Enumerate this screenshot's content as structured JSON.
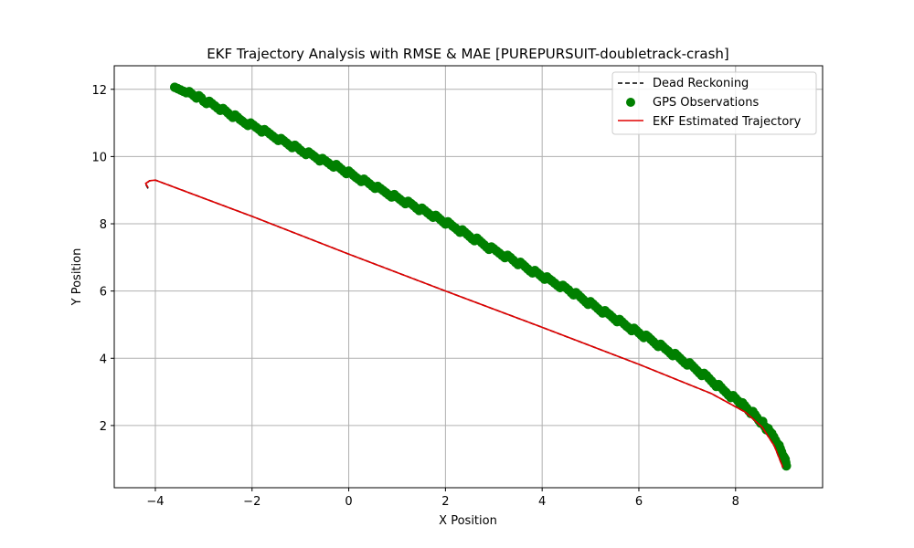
{
  "chart_data": {
    "type": "scatter",
    "title": "EKF Trajectory Analysis with RMSE & MAE [PUREPURSUIT-doubletrack-crash]",
    "xlabel": "X Position",
    "ylabel": "Y Position",
    "xlim": [
      -4.85,
      9.8
    ],
    "ylim": [
      0.15,
      12.7
    ],
    "xticks": [
      -4,
      -2,
      0,
      2,
      4,
      6,
      8
    ],
    "xtick_labels": [
      "−4",
      "−2",
      "0",
      "2",
      "4",
      "6",
      "8"
    ],
    "yticks": [
      2,
      4,
      6,
      8,
      10,
      12
    ],
    "ytick_labels": [
      "2",
      "4",
      "6",
      "8",
      "10",
      "12"
    ],
    "grid": true,
    "legend_position": "top-right",
    "series": [
      {
        "name": "Dead Reckoning",
        "kind": "line",
        "style": "dashed",
        "color": "#000000",
        "points": [
          [
            -4.15,
            9.05
          ],
          [
            -4.2,
            9.18
          ],
          [
            -4.12,
            9.28
          ],
          [
            -4.0,
            9.3
          ],
          [
            -2.0,
            8.22
          ],
          [
            0.0,
            7.1
          ],
          [
            2.0,
            6.0
          ],
          [
            4.0,
            4.92
          ],
          [
            6.0,
            3.82
          ],
          [
            7.5,
            2.95
          ],
          [
            8.2,
            2.4
          ],
          [
            8.55,
            1.95
          ],
          [
            8.8,
            1.4
          ],
          [
            8.98,
            0.75
          ]
        ]
      },
      {
        "name": "GPS Observations",
        "kind": "scatter",
        "color": "#008000",
        "points": [
          [
            -3.6,
            12.0
          ],
          [
            -3.3,
            11.92
          ],
          [
            -3.0,
            11.68
          ],
          [
            -2.6,
            11.38
          ],
          [
            -2.2,
            11.05
          ],
          [
            -1.8,
            10.78
          ],
          [
            -1.4,
            10.5
          ],
          [
            -1.0,
            10.2
          ],
          [
            -0.6,
            9.93
          ],
          [
            -0.2,
            9.66
          ],
          [
            0.2,
            9.35
          ],
          [
            0.6,
            9.05
          ],
          [
            1.0,
            8.78
          ],
          [
            1.4,
            8.5
          ],
          [
            1.8,
            8.2
          ],
          [
            2.2,
            7.88
          ],
          [
            2.6,
            7.55
          ],
          [
            3.0,
            7.22
          ],
          [
            3.4,
            6.93
          ],
          [
            3.8,
            6.6
          ],
          [
            4.2,
            6.28
          ],
          [
            4.6,
            5.98
          ],
          [
            5.0,
            5.62
          ],
          [
            5.4,
            5.28
          ],
          [
            5.8,
            4.93
          ],
          [
            6.2,
            4.58
          ],
          [
            6.6,
            4.22
          ],
          [
            7.0,
            3.85
          ],
          [
            7.4,
            3.45
          ],
          [
            7.8,
            3.0
          ],
          [
            8.1,
            2.68
          ],
          [
            8.4,
            2.3
          ],
          [
            8.6,
            2.0
          ],
          [
            8.75,
            1.7
          ],
          [
            8.9,
            1.4
          ],
          [
            9.0,
            1.1
          ],
          [
            9.05,
            0.8
          ]
        ]
      },
      {
        "name": "EKF Estimated Trajectory",
        "kind": "line",
        "style": "solid",
        "color": "#e00000",
        "points": [
          [
            -4.15,
            9.08
          ],
          [
            -4.2,
            9.2
          ],
          [
            -4.12,
            9.28
          ],
          [
            -4.0,
            9.3
          ],
          [
            -2.0,
            8.22
          ],
          [
            0.0,
            7.1
          ],
          [
            2.0,
            6.0
          ],
          [
            4.0,
            4.92
          ],
          [
            6.0,
            3.82
          ],
          [
            7.5,
            2.95
          ],
          [
            8.2,
            2.4
          ],
          [
            8.55,
            1.95
          ],
          [
            8.8,
            1.4
          ],
          [
            8.98,
            0.75
          ]
        ]
      }
    ]
  }
}
